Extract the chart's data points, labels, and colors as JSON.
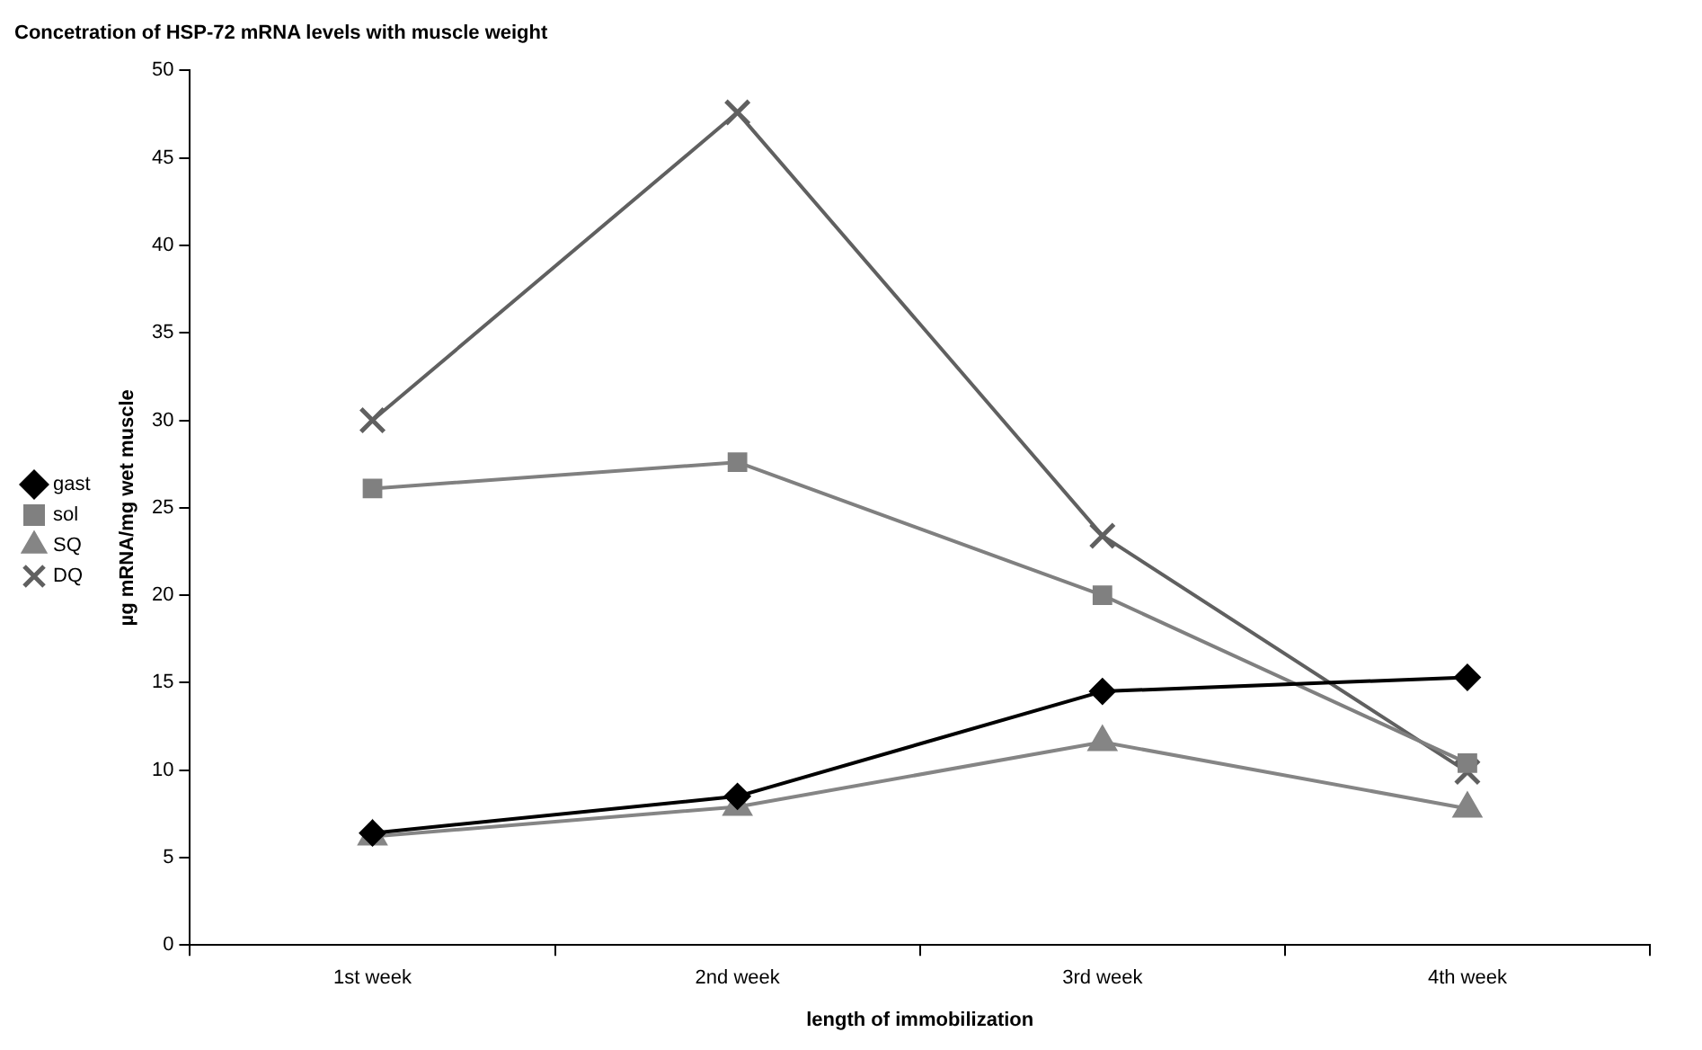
{
  "chart_data": {
    "type": "line",
    "title": "Concetration of HSP-72 mRNA levels with muscle weight",
    "xlabel": "length of immobilization",
    "ylabel": "µg mRNA/mg wet muscle",
    "categories": [
      "1st week",
      "2nd week",
      "3rd week",
      "4th week"
    ],
    "series": [
      {
        "name": "gast",
        "color": "#000000",
        "marker": "diamond",
        "values": [
          6.4,
          8.5,
          14.5,
          15.3
        ]
      },
      {
        "name": "sol",
        "color": "#808080",
        "marker": "square",
        "values": [
          26.1,
          27.6,
          20.0,
          10.4
        ]
      },
      {
        "name": "SQ",
        "color": "#858585",
        "marker": "triangle",
        "values": [
          6.2,
          7.9,
          11.6,
          7.8
        ]
      },
      {
        "name": "DQ",
        "color": "#606060",
        "marker": "cross",
        "values": [
          30.0,
          47.6,
          23.4,
          9.9
        ]
      }
    ],
    "ylim": [
      0,
      50
    ],
    "yticks": [
      0,
      5,
      10,
      15,
      20,
      25,
      30,
      35,
      40,
      45,
      50
    ],
    "grid": false,
    "legend": "left"
  }
}
